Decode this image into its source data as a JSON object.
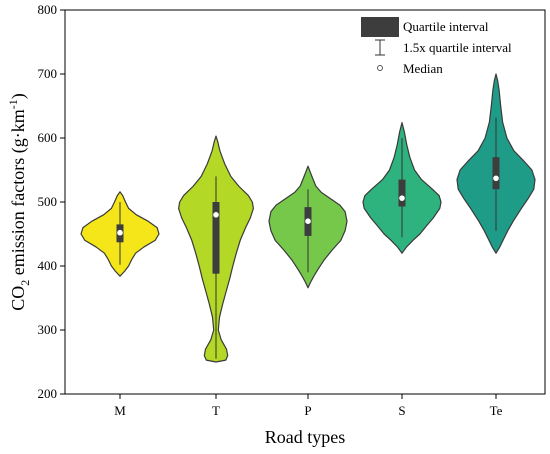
{
  "chart_data": {
    "type": "violin",
    "xlabel": "Road types",
    "ylabel_main": "CO",
    "ylabel_sub": "2",
    "ylabel_rest": " emission factors (g·km",
    "ylabel_sup": "-1",
    "ylabel_end": ")",
    "ylim": [
      200,
      800
    ],
    "yticks": [
      "200",
      "300",
      "400",
      "500",
      "600",
      "700",
      "800"
    ],
    "grid": false,
    "legend_position": "top-right",
    "legend": {
      "quartile": "Quartile interval",
      "whisker": "1.5x quartile interval",
      "median": "Median"
    },
    "categories": [
      "M",
      "T",
      "P",
      "S",
      "Te"
    ],
    "violins": [
      {
        "category": "M",
        "color": "#f5e619",
        "median": 452,
        "q1": 437,
        "q3": 465,
        "whisker_low": 402,
        "whisker_high": 500,
        "profile": [
          [
            384,
            0.0
          ],
          [
            392,
            0.12
          ],
          [
            400,
            0.22
          ],
          [
            410,
            0.3
          ],
          [
            420,
            0.4
          ],
          [
            430,
            0.62
          ],
          [
            440,
            0.9
          ],
          [
            450,
            1.0
          ],
          [
            460,
            0.95
          ],
          [
            470,
            0.72
          ],
          [
            480,
            0.42
          ],
          [
            490,
            0.22
          ],
          [
            500,
            0.14
          ],
          [
            510,
            0.07
          ],
          [
            516,
            0.0
          ]
        ]
      },
      {
        "category": "T",
        "color": "#b3d826",
        "median": 480,
        "q1": 388,
        "q3": 500,
        "whisker_low": 255,
        "whisker_high": 540,
        "profile": [
          [
            250,
            0.0
          ],
          [
            253,
            0.25
          ],
          [
            260,
            0.3
          ],
          [
            270,
            0.27
          ],
          [
            285,
            0.13
          ],
          [
            300,
            0.06
          ],
          [
            320,
            0.09
          ],
          [
            340,
            0.17
          ],
          [
            360,
            0.26
          ],
          [
            380,
            0.35
          ],
          [
            400,
            0.43
          ],
          [
            420,
            0.52
          ],
          [
            440,
            0.62
          ],
          [
            460,
            0.76
          ],
          [
            475,
            0.88
          ],
          [
            490,
            0.96
          ],
          [
            500,
            0.93
          ],
          [
            510,
            0.83
          ],
          [
            525,
            0.58
          ],
          [
            540,
            0.38
          ],
          [
            560,
            0.22
          ],
          [
            580,
            0.1
          ],
          [
            595,
            0.04
          ],
          [
            603,
            0.0
          ]
        ]
      },
      {
        "category": "P",
        "color": "#76c84a",
        "median": 470,
        "q1": 447,
        "q3": 492,
        "whisker_low": 390,
        "whisker_high": 520,
        "profile": [
          [
            366,
            0.0
          ],
          [
            375,
            0.07
          ],
          [
            385,
            0.16
          ],
          [
            395,
            0.26
          ],
          [
            410,
            0.42
          ],
          [
            425,
            0.62
          ],
          [
            440,
            0.84
          ],
          [
            455,
            0.95
          ],
          [
            470,
            1.0
          ],
          [
            485,
            0.95
          ],
          [
            495,
            0.82
          ],
          [
            505,
            0.58
          ],
          [
            515,
            0.34
          ],
          [
            525,
            0.2
          ],
          [
            540,
            0.1
          ],
          [
            556,
            0.0
          ]
        ]
      },
      {
        "category": "S",
        "color": "#2fb37e",
        "median": 506,
        "q1": 493,
        "q3": 535,
        "whisker_low": 445,
        "whisker_high": 600,
        "profile": [
          [
            420,
            0.0
          ],
          [
            430,
            0.12
          ],
          [
            440,
            0.28
          ],
          [
            450,
            0.46
          ],
          [
            462,
            0.62
          ],
          [
            475,
            0.8
          ],
          [
            490,
            0.97
          ],
          [
            500,
            1.0
          ],
          [
            510,
            0.95
          ],
          [
            520,
            0.78
          ],
          [
            535,
            0.5
          ],
          [
            550,
            0.32
          ],
          [
            570,
            0.2
          ],
          [
            590,
            0.12
          ],
          [
            610,
            0.06
          ],
          [
            624,
            0.0
          ]
        ]
      },
      {
        "category": "Te",
        "color": "#1f9c88",
        "median": 537,
        "q1": 520,
        "q3": 570,
        "whisker_low": 455,
        "whisker_high": 632,
        "profile": [
          [
            420,
            0.0
          ],
          [
            430,
            0.1
          ],
          [
            440,
            0.18
          ],
          [
            455,
            0.3
          ],
          [
            470,
            0.44
          ],
          [
            490,
            0.65
          ],
          [
            505,
            0.82
          ],
          [
            520,
            0.97
          ],
          [
            535,
            1.0
          ],
          [
            550,
            0.92
          ],
          [
            565,
            0.7
          ],
          [
            580,
            0.46
          ],
          [
            600,
            0.28
          ],
          [
            625,
            0.17
          ],
          [
            650,
            0.12
          ],
          [
            675,
            0.08
          ],
          [
            690,
            0.04
          ],
          [
            700,
            0.0
          ]
        ]
      }
    ]
  }
}
